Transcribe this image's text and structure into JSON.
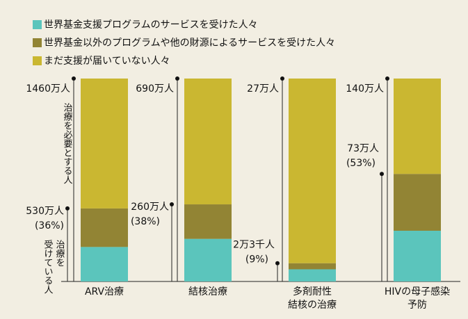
{
  "chart_data": {
    "type": "stacked_bar",
    "categories": [
      "ARV治療",
      "結核治療",
      "多剤耐性\n結核の治療",
      "HIVの母子感染\n予防"
    ],
    "series": [
      {
        "name": "世界基金支援プログラムのサービスを受けた人々",
        "color": "#5bc5bc",
        "values": [
          17,
          21,
          6,
          25
        ]
      },
      {
        "name": "世界基金以外のプログラムや他の財源によるサービスを受けた人々",
        "color": "#928434",
        "values": [
          19,
          17,
          3,
          28
        ]
      },
      {
        "name": "まだ支援が届いていない人々",
        "color": "#cab731",
        "values": [
          64,
          62,
          91,
          47
        ]
      }
    ],
    "ylim": [
      0,
      100
    ],
    "total_labels": [
      "1460万人",
      "690万人",
      "27万人",
      "140万人"
    ],
    "treated_labels": [
      "530万人",
      "260万人",
      "2万3千人",
      "73万人"
    ],
    "treated_pct_labels": [
      "(36%)",
      "(38%)",
      "(9%)",
      "(53%)"
    ],
    "annotations": [
      "治療を必要とする人",
      "治療を",
      "受けている人"
    ]
  }
}
